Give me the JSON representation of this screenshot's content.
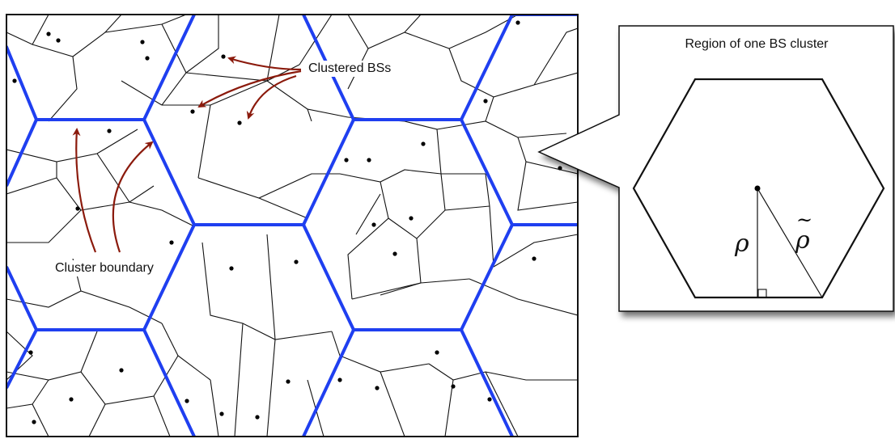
{
  "labels": {
    "clustered_bss": "Clustered BSs",
    "cluster_boundary": "Cluster boundary",
    "panel_title": "Region of one BS cluster",
    "rho": "ρ",
    "rho_tilde": "ρ",
    "tilde": "~"
  },
  "colors": {
    "cluster_boundary": "#1f3ff0",
    "arrow": "#8b1a0c",
    "voronoi_edge": "#111111",
    "base_station": "#000000"
  }
}
